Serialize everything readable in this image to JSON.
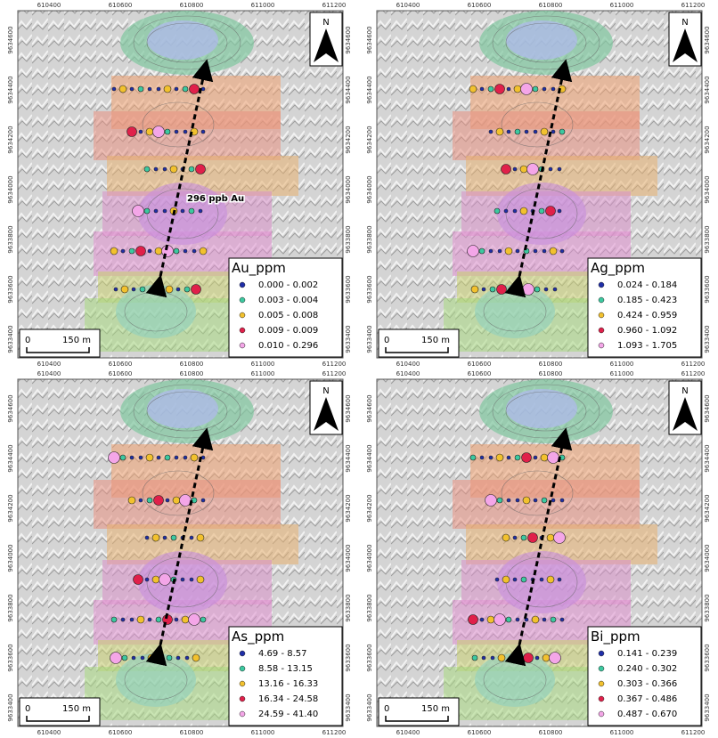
{
  "x_labels": [
    "610400",
    "610600",
    "610800",
    "611000",
    "611200"
  ],
  "y_labels": [
    "9634600",
    "9634400",
    "9634200",
    "9634000",
    "9633800",
    "9633600",
    "9633400"
  ],
  "north": "N",
  "scale_bar": {
    "zero": "0",
    "length": "150 m"
  },
  "panels": [
    {
      "legend_title": "Au_ppm",
      "annotation": "296 ppb Au",
      "legend": [
        {
          "label": "0.000 - 0.002",
          "color": "#1f2ea8"
        },
        {
          "label": "0.003 - 0.004",
          "color": "#3cc9a0"
        },
        {
          "label": "0.005 - 0.008",
          "color": "#f2c12e"
        },
        {
          "label": "0.009 - 0.009",
          "color": "#e0204a"
        },
        {
          "label": "0.010 - 0.296",
          "color": "#f4a6e8"
        }
      ]
    },
    {
      "legend_title": "Ag_ppm",
      "legend": [
        {
          "label": "0.024 - 0.184",
          "color": "#1f2ea8"
        },
        {
          "label": "0.185 - 0.423",
          "color": "#3cc9a0"
        },
        {
          "label": "0.424 - 0.959",
          "color": "#f2c12e"
        },
        {
          "label": "0.960 - 1.092",
          "color": "#e0204a"
        },
        {
          "label": "1.093 - 1.705",
          "color": "#f4a6e8"
        }
      ]
    },
    {
      "legend_title": "As_ppm",
      "legend": [
        {
          "label": "4.69 - 8.57",
          "color": "#1f2ea8"
        },
        {
          "label": "8.58 - 13.15",
          "color": "#3cc9a0"
        },
        {
          "label": "13.16 - 16.33",
          "color": "#f2c12e"
        },
        {
          "label": "16.34 - 24.58",
          "color": "#e0204a"
        },
        {
          "label": "24.59 - 41.40",
          "color": "#f4a6e8"
        }
      ]
    },
    {
      "legend_title": "Bi_ppm",
      "legend": [
        {
          "label": "0.141 - 0.239",
          "color": "#1f2ea8"
        },
        {
          "label": "0.240 - 0.302",
          "color": "#3cc9a0"
        },
        {
          "label": "0.303 - 0.366",
          "color": "#f2c12e"
        },
        {
          "label": "0.367 - 0.486",
          "color": "#e0204a"
        },
        {
          "label": "0.487 - 0.670",
          "color": "#f4a6e8"
        }
      ]
    }
  ]
}
